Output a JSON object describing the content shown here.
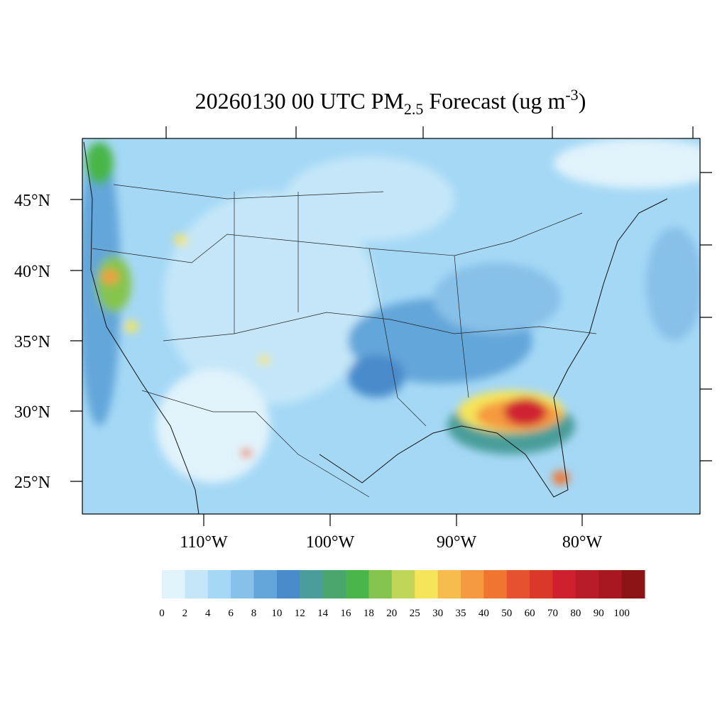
{
  "title": {
    "part1": "20260130 00 UTC PM",
    "sub": "2.5",
    "part2": " Forecast (ug m",
    "sup": "-3",
    "part3": ")"
  },
  "latitude_labels": [
    "45°N",
    "40°N",
    "35°N",
    "30°N",
    "25°N"
  ],
  "longitude_labels": [
    "110°W",
    "100°W",
    "90°W",
    "80°W"
  ],
  "colorbar": {
    "levels": [
      0,
      2,
      4,
      6,
      8,
      10,
      12,
      14,
      16,
      18,
      20,
      25,
      30,
      35,
      40,
      50,
      60,
      70,
      80,
      90,
      100
    ],
    "colors": [
      "#e1f3fb",
      "#c4e6f8",
      "#a5d8f5",
      "#87c0e8",
      "#64a6d9",
      "#4a8bcb",
      "#4a9d9a",
      "#4aa66c",
      "#4ab54a",
      "#85c44e",
      "#c0d658",
      "#f5e55a",
      "#f6bd4e",
      "#f59a40",
      "#f07530",
      "#e65230",
      "#da3828",
      "#cf2030",
      "#b81c28",
      "#a81820",
      "#8c1416"
    ]
  }
}
